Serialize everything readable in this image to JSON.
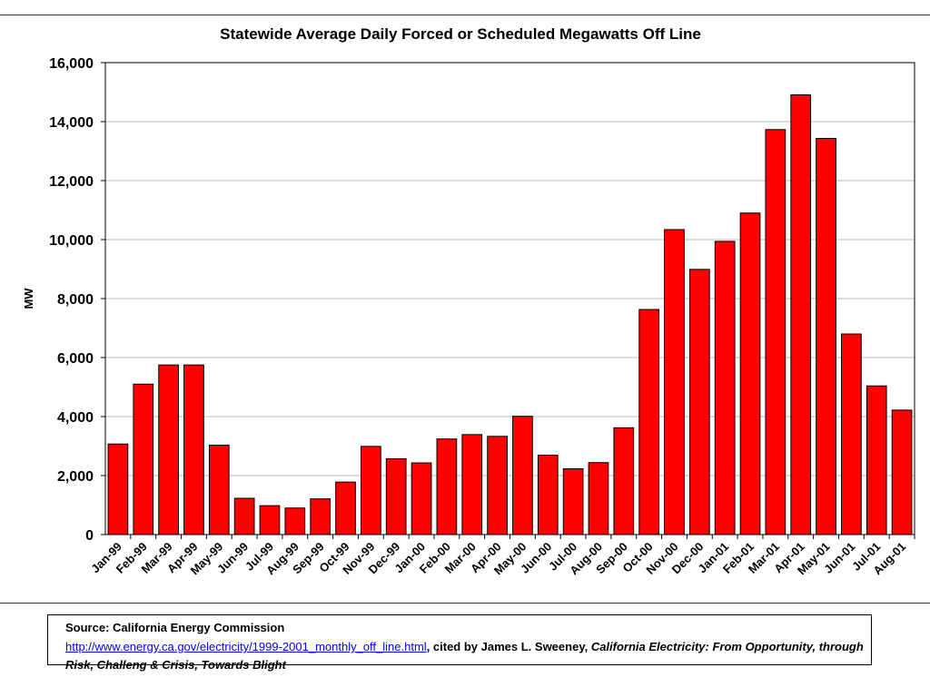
{
  "chart_data": {
    "type": "bar",
    "title": "Statewide Average Daily Forced or Scheduled Megawatts Off Line",
    "ylabel": "MW",
    "xlabel": "",
    "ylim": [
      0,
      16000
    ],
    "yticks": [
      0,
      2000,
      4000,
      6000,
      8000,
      10000,
      12000,
      14000,
      16000
    ],
    "ytick_labels": [
      "0",
      "2,000",
      "4,000",
      "6,000",
      "8,000",
      "10,000",
      "12,000",
      "14,000",
      "16,000"
    ],
    "grid": true,
    "bar_color": "#ff0000",
    "categories": [
      "Jan-99",
      "Feb-99",
      "Mar-99",
      "Apr-99",
      "May-99",
      "Jun-99",
      "Jul-99",
      "Aug-99",
      "Sep-99",
      "Oct-99",
      "Nov-99",
      "Dec-99",
      "Jan-00",
      "Feb-00",
      "Mar-00",
      "Apr-00",
      "May-00",
      "Jun-00",
      "Jul-00",
      "Aug-00",
      "Sep-00",
      "Oct-00",
      "Nov-00",
      "Dec-00",
      "Jan-01",
      "Feb-01",
      "Mar-01",
      "Apr-01",
      "May-01",
      "Jun-01",
      "Jul-01",
      "Aug-01"
    ],
    "values": [
      3070,
      5100,
      5750,
      5750,
      3030,
      1230,
      980,
      900,
      1210,
      1780,
      2990,
      2570,
      2430,
      3240,
      3390,
      3330,
      4010,
      2690,
      2230,
      2440,
      3620,
      7630,
      10340,
      8990,
      9940,
      10900,
      13730,
      14910,
      13430,
      6800,
      5040,
      4220
    ]
  },
  "source": {
    "label": "Source:  California Energy Commission",
    "url_text": "http://www.energy.ca.gov/electricity/1999-2001_monthly_off_line.html",
    "cited_by": ", cited by  James L. Sweeney, ",
    "book_title": "California Electricity:  From Opportunity, through Risk, Challeng & Crisis, Towards Blight"
  }
}
